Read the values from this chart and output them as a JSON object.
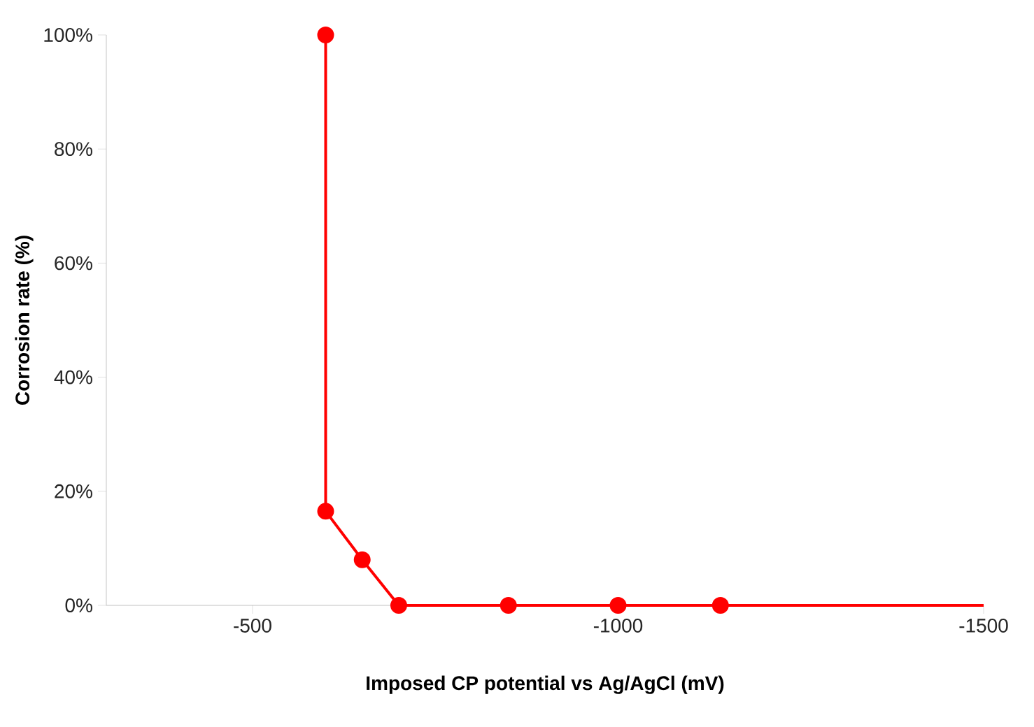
{
  "chart_data": {
    "type": "line",
    "xlabel": "Imposed CP potential vs Ag/AgCl (mV)",
    "ylabel": "Corrosion rate (%)",
    "xlim": [
      -300,
      -1500
    ],
    "xticks": [
      -500,
      -1000,
      -1500
    ],
    "ylim": [
      0,
      100
    ],
    "yticks": [
      {
        "value": 0,
        "label": "0%"
      },
      {
        "value": 20,
        "label": "20%"
      },
      {
        "value": 40,
        "label": "40%"
      },
      {
        "value": 60,
        "label": "60%"
      },
      {
        "value": 80,
        "label": "80%"
      },
      {
        "value": 100,
        "label": "100%"
      }
    ],
    "series": [
      {
        "color": "#ff0000",
        "marker": "circle",
        "x": [
          -600,
          -600,
          -650,
          -700,
          -850,
          -1000,
          -1140
        ],
        "values": [
          100,
          16.5,
          8,
          0,
          0,
          0,
          0
        ]
      },
      {
        "color": "#ff0000",
        "marker": "none",
        "x": [
          -1140,
          -1500
        ],
        "values": [
          0,
          0
        ]
      }
    ]
  }
}
